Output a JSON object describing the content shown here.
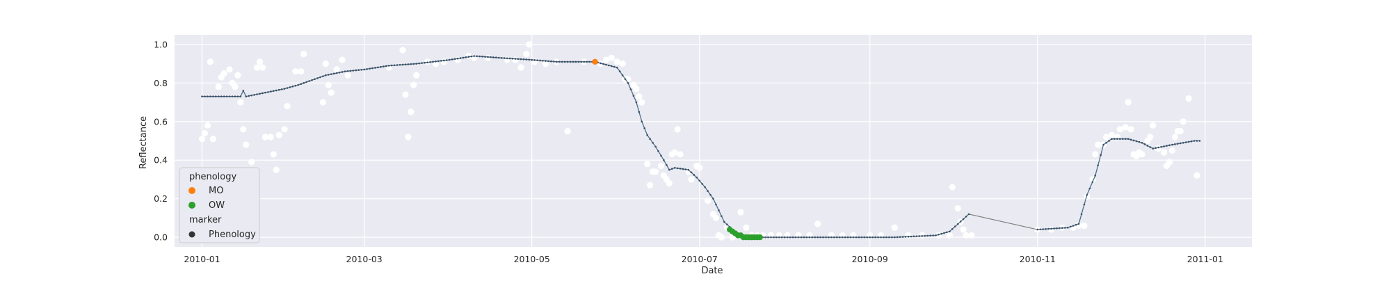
{
  "chart_data": {
    "type": "scatter",
    "title": "",
    "xlabel": "Date",
    "ylabel": "Reflectance",
    "xlim": [
      "2009-12-22",
      "2011-01-18"
    ],
    "ylim": [
      -0.05,
      1.05
    ],
    "grid": true,
    "x_ticks": [
      "2010-01",
      "2010-03",
      "2010-05",
      "2010-07",
      "2010-09",
      "2010-11",
      "2011-01"
    ],
    "y_ticks": [
      "0.0",
      "0.2",
      "0.4",
      "0.6",
      "0.8",
      "1.0"
    ],
    "legend": {
      "position": "lower-left",
      "hue_title": "phenology",
      "marker_title": "marker",
      "entries": [
        {
          "label": "MO",
          "color": "#ff7f0e"
        },
        {
          "label": "OW",
          "color": "#2ca02c"
        },
        {
          "label": "Phenology",
          "color": "#333333"
        }
      ]
    },
    "colors": {
      "background": "#eaeaf2",
      "grid": "#ffffff",
      "raw_points": "#ffffff",
      "smoothed_line": "#4c6d87",
      "smoothed_points": "#3b4f62",
      "gap_line": "#808080",
      "MO": "#ff7f0e",
      "OW": "#2ca02c"
    },
    "series": [
      {
        "role": "raw_observations",
        "points": [
          [
            "2010-01-01",
            0.51
          ],
          [
            "2010-01-02",
            0.54
          ],
          [
            "2010-01-03",
            0.58
          ],
          [
            "2010-01-04",
            0.91
          ],
          [
            "2010-01-05",
            0.51
          ],
          [
            "2010-01-07",
            0.78
          ],
          [
            "2010-01-08",
            0.83
          ],
          [
            "2010-01-09",
            0.85
          ],
          [
            "2010-01-11",
            0.87
          ],
          [
            "2010-01-12",
            0.8
          ],
          [
            "2010-01-13",
            0.78
          ],
          [
            "2010-01-14",
            0.84
          ],
          [
            "2010-01-15",
            0.7
          ],
          [
            "2010-01-16",
            0.56
          ],
          [
            "2010-01-17",
            0.48
          ],
          [
            "2010-01-19",
            0.39
          ],
          [
            "2010-01-21",
            0.88
          ],
          [
            "2010-01-22",
            0.91
          ],
          [
            "2010-01-23",
            0.88
          ],
          [
            "2010-01-24",
            0.52
          ],
          [
            "2010-01-26",
            0.52
          ],
          [
            "2010-01-27",
            0.43
          ],
          [
            "2010-01-28",
            0.35
          ],
          [
            "2010-01-29",
            0.53
          ],
          [
            "2010-01-31",
            0.56
          ],
          [
            "2010-02-01",
            0.68
          ],
          [
            "2010-02-04",
            0.86
          ],
          [
            "2010-02-06",
            0.86
          ],
          [
            "2010-02-07",
            0.95
          ],
          [
            "2010-02-14",
            0.7
          ],
          [
            "2010-02-15",
            0.9
          ],
          [
            "2010-02-16",
            0.79
          ],
          [
            "2010-02-17",
            0.75
          ],
          [
            "2010-02-19",
            0.87
          ],
          [
            "2010-02-21",
            0.92
          ],
          [
            "2010-02-23",
            0.84
          ],
          [
            "2010-03-10",
            0.88
          ],
          [
            "2010-03-15",
            0.97
          ],
          [
            "2010-03-16",
            0.74
          ],
          [
            "2010-03-17",
            0.52
          ],
          [
            "2010-03-18",
            0.65
          ],
          [
            "2010-03-19",
            0.79
          ],
          [
            "2010-03-20",
            0.84
          ],
          [
            "2010-03-24",
            0.91
          ],
          [
            "2010-03-27",
            0.9
          ],
          [
            "2010-03-30",
            0.91
          ],
          [
            "2010-04-04",
            0.92
          ],
          [
            "2010-04-08",
            0.94
          ],
          [
            "2010-04-10",
            0.93
          ],
          [
            "2010-04-15",
            0.93
          ],
          [
            "2010-04-22",
            0.92
          ],
          [
            "2010-04-25",
            0.92
          ],
          [
            "2010-04-27",
            0.88
          ],
          [
            "2010-04-29",
            0.95
          ],
          [
            "2010-04-30",
            1.0
          ],
          [
            "2010-05-02",
            0.91
          ],
          [
            "2010-05-06",
            0.9
          ],
          [
            "2010-05-10",
            0.91
          ],
          [
            "2010-05-14",
            0.55
          ],
          [
            "2010-05-20",
            0.91
          ],
          [
            "2010-05-26",
            0.9
          ],
          [
            "2010-05-28",
            0.92
          ],
          [
            "2010-05-30",
            0.93
          ],
          [
            "2010-06-01",
            0.91
          ],
          [
            "2010-06-03",
            0.9
          ],
          [
            "2010-06-04",
            0.82
          ],
          [
            "2010-06-05",
            0.82
          ],
          [
            "2010-06-07",
            0.79
          ],
          [
            "2010-06-08",
            0.77
          ],
          [
            "2010-06-09",
            0.73
          ],
          [
            "2010-06-10",
            0.7
          ],
          [
            "2010-06-12",
            0.38
          ],
          [
            "2010-06-13",
            0.27
          ],
          [
            "2010-06-14",
            0.34
          ],
          [
            "2010-06-15",
            0.34
          ],
          [
            "2010-06-17",
            0.37
          ],
          [
            "2010-06-18",
            0.32
          ],
          [
            "2010-06-19",
            0.3
          ],
          [
            "2010-06-20",
            0.28
          ],
          [
            "2010-06-21",
            0.43
          ],
          [
            "2010-06-22",
            0.44
          ],
          [
            "2010-06-23",
            0.56
          ],
          [
            "2010-06-24",
            0.43
          ],
          [
            "2010-06-27",
            0.34
          ],
          [
            "2010-06-28",
            0.3
          ],
          [
            "2010-06-30",
            0.37
          ],
          [
            "2010-07-01",
            0.36
          ],
          [
            "2010-07-04",
            0.19
          ],
          [
            "2010-07-06",
            0.12
          ],
          [
            "2010-07-07",
            0.1
          ],
          [
            "2010-07-08",
            0.01
          ],
          [
            "2010-07-09",
            0.0
          ],
          [
            "2010-07-11",
            0.05
          ],
          [
            "2010-07-13",
            0.0
          ],
          [
            "2010-07-14",
            0.01
          ],
          [
            "2010-07-16",
            0.13
          ],
          [
            "2010-07-18",
            0.05
          ],
          [
            "2010-07-20",
            0.01
          ],
          [
            "2010-07-22",
            0.01
          ],
          [
            "2010-07-24",
            0.01
          ],
          [
            "2010-07-27",
            0.01
          ],
          [
            "2010-07-30",
            0.01
          ],
          [
            "2010-08-02",
            0.01
          ],
          [
            "2010-08-06",
            0.01
          ],
          [
            "2010-08-10",
            0.01
          ],
          [
            "2010-08-13",
            0.07
          ],
          [
            "2010-08-18",
            0.01
          ],
          [
            "2010-08-22",
            0.01
          ],
          [
            "2010-08-26",
            0.01
          ],
          [
            "2010-09-01",
            0.01
          ],
          [
            "2010-09-05",
            0.01
          ],
          [
            "2010-09-10",
            0.05
          ],
          [
            "2010-09-15",
            0.01
          ],
          [
            "2010-09-20",
            0.01
          ],
          [
            "2010-09-26",
            0.01
          ],
          [
            "2010-09-30",
            0.01
          ],
          [
            "2010-10-01",
            0.26
          ],
          [
            "2010-10-03",
            0.15
          ],
          [
            "2010-10-04",
            0.08
          ],
          [
            "2010-10-05",
            0.04
          ],
          [
            "2010-10-06",
            0.01
          ],
          [
            "2010-10-08",
            0.01
          ],
          [
            "2010-11-01",
            0.04
          ],
          [
            "2010-11-06",
            0.04
          ],
          [
            "2010-11-10",
            0.05
          ],
          [
            "2010-11-14",
            0.05
          ],
          [
            "2010-11-16",
            0.06
          ],
          [
            "2010-11-18",
            0.06
          ],
          [
            "2010-11-19",
            0.21
          ],
          [
            "2010-11-21",
            0.3
          ],
          [
            "2010-11-22",
            0.43
          ],
          [
            "2010-11-23",
            0.48
          ],
          [
            "2010-11-25",
            0.48
          ],
          [
            "2010-11-26",
            0.52
          ],
          [
            "2010-11-28",
            0.53
          ],
          [
            "2010-11-30",
            0.52
          ],
          [
            "2010-12-01",
            0.56
          ],
          [
            "2010-12-03",
            0.57
          ],
          [
            "2010-12-04",
            0.7
          ],
          [
            "2010-12-05",
            0.56
          ],
          [
            "2010-12-06",
            0.43
          ],
          [
            "2010-12-07",
            0.42
          ],
          [
            "2010-12-08",
            0.44
          ],
          [
            "2010-12-09",
            0.43
          ],
          [
            "2010-12-11",
            0.5
          ],
          [
            "2010-12-12",
            0.52
          ],
          [
            "2010-12-13",
            0.58
          ],
          [
            "2010-12-15",
            0.46
          ],
          [
            "2010-12-17",
            0.44
          ],
          [
            "2010-12-18",
            0.37
          ],
          [
            "2010-12-19",
            0.39
          ],
          [
            "2010-12-20",
            0.45
          ],
          [
            "2010-12-21",
            0.52
          ],
          [
            "2010-12-22",
            0.55
          ],
          [
            "2010-12-23",
            0.55
          ],
          [
            "2010-12-24",
            0.6
          ],
          [
            "2010-12-26",
            0.72
          ],
          [
            "2010-12-29",
            0.32
          ]
        ]
      },
      {
        "role": "smoothed",
        "points": [
          [
            "2010-01-01",
            0.73
          ],
          [
            "2010-01-15",
            0.73
          ],
          [
            "2010-01-16",
            0.76
          ],
          [
            "2010-01-17",
            0.73
          ],
          [
            "2010-01-31",
            0.77
          ],
          [
            "2010-02-05",
            0.79
          ],
          [
            "2010-02-15",
            0.84
          ],
          [
            "2010-02-22",
            0.86
          ],
          [
            "2010-03-01",
            0.87
          ],
          [
            "2010-03-10",
            0.89
          ],
          [
            "2010-03-20",
            0.9
          ],
          [
            "2010-04-01",
            0.92
          ],
          [
            "2010-04-10",
            0.94
          ],
          [
            "2010-04-20",
            0.93
          ],
          [
            "2010-05-01",
            0.92
          ],
          [
            "2010-05-10",
            0.91
          ],
          [
            "2010-05-24",
            0.91
          ],
          [
            "2010-06-01",
            0.88
          ],
          [
            "2010-06-05",
            0.8
          ],
          [
            "2010-06-08",
            0.7
          ],
          [
            "2010-06-10",
            0.6
          ],
          [
            "2010-06-12",
            0.53
          ],
          [
            "2010-06-15",
            0.47
          ],
          [
            "2010-06-18",
            0.4
          ],
          [
            "2010-06-20",
            0.35
          ],
          [
            "2010-06-22",
            0.36
          ],
          [
            "2010-06-27",
            0.35
          ],
          [
            "2010-06-30",
            0.31
          ],
          [
            "2010-07-03",
            0.26
          ],
          [
            "2010-07-06",
            0.2
          ],
          [
            "2010-07-08",
            0.14
          ],
          [
            "2010-07-10",
            0.08
          ],
          [
            "2010-07-13",
            0.04
          ],
          [
            "2010-07-16",
            0.01
          ],
          [
            "2010-07-23",
            0.0
          ],
          [
            "2010-08-15",
            0.0
          ],
          [
            "2010-09-10",
            0.0
          ],
          [
            "2010-09-25",
            0.01
          ],
          [
            "2010-09-30",
            0.03
          ],
          [
            "2010-10-07",
            0.12
          ],
          [
            "2010-11-01",
            0.04
          ],
          [
            "2010-11-12",
            0.05
          ],
          [
            "2010-11-16",
            0.07
          ],
          [
            "2010-11-19",
            0.22
          ],
          [
            "2010-11-22",
            0.32
          ],
          [
            "2010-11-25",
            0.48
          ],
          [
            "2010-11-28",
            0.51
          ],
          [
            "2010-12-04",
            0.51
          ],
          [
            "2010-12-09",
            0.49
          ],
          [
            "2010-12-13",
            0.46
          ],
          [
            "2010-12-20",
            0.48
          ],
          [
            "2010-12-28",
            0.5
          ],
          [
            "2010-12-30",
            0.5
          ]
        ]
      },
      {
        "role": "phenology",
        "name": "MO",
        "points": [
          [
            "2010-05-24",
            0.91
          ]
        ]
      },
      {
        "role": "phenology",
        "name": "OW",
        "points": [
          [
            "2010-07-12",
            0.04
          ],
          [
            "2010-07-13",
            0.03
          ],
          [
            "2010-07-14",
            0.02
          ],
          [
            "2010-07-15",
            0.01
          ],
          [
            "2010-07-16",
            0.01
          ],
          [
            "2010-07-17",
            0.0
          ],
          [
            "2010-07-18",
            0.0
          ],
          [
            "2010-07-19",
            0.0
          ],
          [
            "2010-07-20",
            0.0
          ],
          [
            "2010-07-21",
            0.0
          ],
          [
            "2010-07-22",
            0.0
          ],
          [
            "2010-07-23",
            0.0
          ]
        ]
      }
    ]
  }
}
